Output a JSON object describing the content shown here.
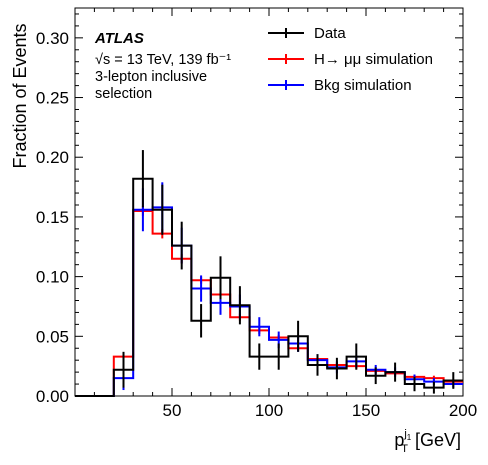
{
  "chart_data": {
    "type": "histogram",
    "experiment_label": "ATLAS",
    "energy_label": "√s = 13 TeV, 139 fb⁻¹",
    "selection_label_lines": [
      "3-lepton inclusive",
      "selection"
    ],
    "ylabel": "Fraction of Events",
    "xlabel": "p_T^{j1} [GeV]",
    "xlabel_main": "p",
    "xlabel_sub": "T",
    "xlabel_sup": "j",
    "xlabel_sup_sub": "1",
    "xlabel_unit": " [GeV]",
    "xlim": [
      0,
      200
    ],
    "ylim": [
      0,
      0.325
    ],
    "x_ticks": [
      50,
      100,
      150,
      200
    ],
    "x_tick_labels": [
      "50",
      "100",
      "150",
      "200"
    ],
    "y_ticks": [
      0.0,
      0.05,
      0.1,
      0.15,
      0.2,
      0.25,
      0.3
    ],
    "y_tick_labels": [
      "0.00",
      "0.05",
      "0.10",
      "0.15",
      "0.20",
      "0.25",
      "0.30"
    ],
    "bin_edges": [
      0,
      10,
      20,
      30,
      40,
      50,
      60,
      70,
      80,
      90,
      100,
      110,
      120,
      130,
      140,
      150,
      160,
      170,
      180,
      190,
      200
    ],
    "legend_position": "top-right",
    "series": [
      {
        "name": "Data",
        "color": "#000000",
        "values": [
          0,
          0,
          0.022,
          0.182,
          0.156,
          0.126,
          0.063,
          0.099,
          0.076,
          0.033,
          0.033,
          0.05,
          0.026,
          0.023,
          0.033,
          0.017,
          0.02,
          0.01,
          0.007,
          0.013
        ],
        "errors": [
          0,
          0,
          0.015,
          0.024,
          0.021,
          0.02,
          0.014,
          0.018,
          0.016,
          0.011,
          0.011,
          0.013,
          0.009,
          0.009,
          0.011,
          0.007,
          0.008,
          0.006,
          0.005,
          0.007
        ]
      },
      {
        "name": "H→ μμ simulation",
        "color": "#ff0000",
        "values": [
          0,
          0,
          0.033,
          0.155,
          0.136,
          0.115,
          0.097,
          0.085,
          0.066,
          0.055,
          0.049,
          0.04,
          0.031,
          0.026,
          0.025,
          0.021,
          0.019,
          0.016,
          0.015,
          0.012
        ],
        "errors": [
          0,
          0,
          0.003,
          0.004,
          0.004,
          0.004,
          0.003,
          0.003,
          0.003,
          0.003,
          0.002,
          0.002,
          0.002,
          0.002,
          0.002,
          0.002,
          0.002,
          0.002,
          0.002,
          0.002
        ]
      },
      {
        "name": "Bkg simulation",
        "color": "#0000ff",
        "values": [
          0,
          0,
          0.015,
          0.156,
          0.158,
          0.126,
          0.09,
          0.078,
          0.075,
          0.058,
          0.047,
          0.044,
          0.03,
          0.024,
          0.029,
          0.022,
          0.02,
          0.014,
          0.012,
          0.01
        ],
        "errors": [
          0,
          0,
          0.01,
          0.018,
          0.021,
          0.015,
          0.011,
          0.01,
          0.01,
          0.008,
          0.007,
          0.007,
          0.005,
          0.005,
          0.005,
          0.004,
          0.004,
          0.004,
          0.003,
          0.003
        ]
      }
    ]
  }
}
